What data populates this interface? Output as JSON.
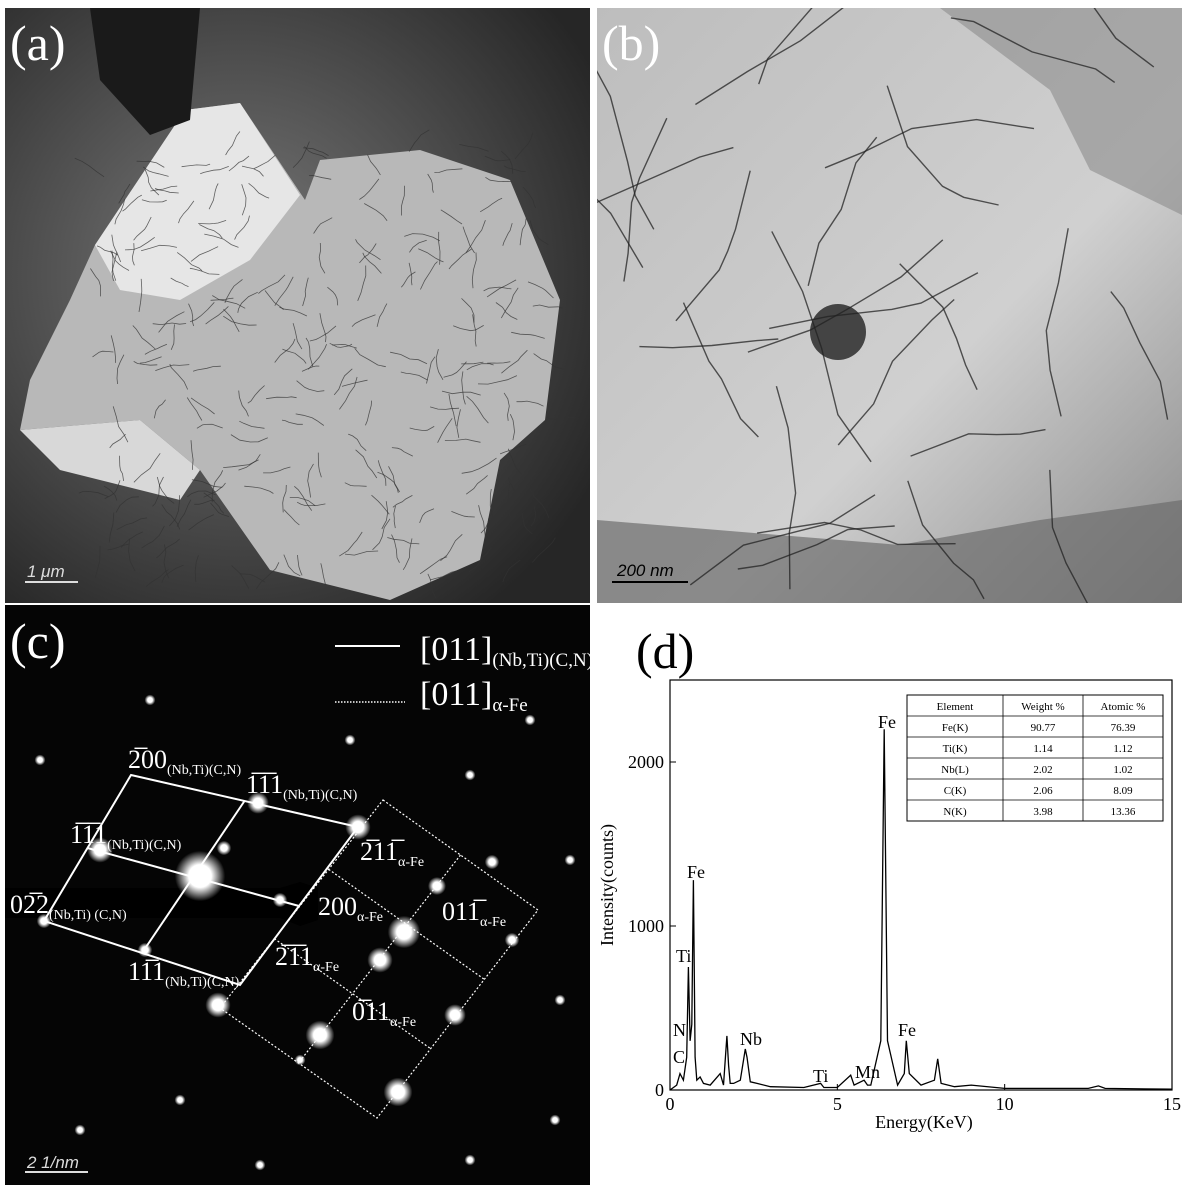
{
  "panels": {
    "a": {
      "label": "(a)",
      "scale_bar": "1 μm"
    },
    "b": {
      "label": "(b)",
      "scale_bar": "200 nm"
    },
    "c": {
      "label": "(c)",
      "scale_bar": "2 1/nm",
      "legend": [
        {
          "text": "[011]",
          "sub": "(Nb,Ti)(C,N)"
        },
        {
          "text": "[011]",
          "sub": "α-Fe"
        }
      ],
      "spot_labels": [
        {
          "text": "2̅00",
          "sub": "(Nb,Ti)(C,N)"
        },
        {
          "text": "1̅1̅1",
          "sub": "(Nb,Ti)(C,N)"
        },
        {
          "text": "1̅1̅1",
          "sub": "(Nb,Ti)(C,N)"
        },
        {
          "text": "02̅2",
          "sub": "(Nb,Ti) (C,N)"
        },
        {
          "text": "11̅1",
          "sub": "(Nb,Ti)(C,N)"
        },
        {
          "text": "2̅11̅",
          "sub": "α-Fe"
        },
        {
          "text": "200",
          "sub": "α-Fe"
        },
        {
          "text": "011̅",
          "sub": "α-Fe"
        },
        {
          "text": "2̅1̅1",
          "sub": "α-Fe"
        },
        {
          "text": "0̅11",
          "sub": "α-Fe"
        }
      ]
    },
    "d": {
      "label": "(d)"
    }
  },
  "chart_data": {
    "type": "line",
    "color": "#000000",
    "x_label": "Energy(KeV)",
    "y_label": "Intensity(counts)",
    "x": [
      0,
      0.2,
      0.3,
      0.4,
      0.5,
      0.55,
      0.6,
      0.65,
      0.7,
      0.75,
      0.8,
      0.9,
      1.0,
      1.2,
      1.5,
      1.6,
      1.7,
      1.75,
      1.8,
      1.9,
      2.1,
      2.25,
      2.3,
      2.4,
      2.6,
      3.0,
      4.0,
      4.5,
      4.6,
      5.0,
      5.4,
      5.45,
      5.5,
      5.8,
      5.9,
      6.0,
      6.3,
      6.4,
      6.5,
      6.8,
      7.0,
      7.06,
      7.15,
      7.5,
      7.9,
      8.0,
      8.1,
      8.5,
      9.0,
      10.0,
      12.5,
      12.8,
      13.0,
      15.0
    ],
    "values": [
      0,
      30,
      100,
      60,
      200,
      750,
      300,
      400,
      1280,
      200,
      60,
      80,
      40,
      30,
      100,
      30,
      330,
      150,
      40,
      40,
      60,
      250,
      200,
      50,
      40,
      20,
      15,
      40,
      15,
      15,
      90,
      60,
      30,
      60,
      30,
      30,
      300,
      2200,
      300,
      30,
      100,
      300,
      100,
      30,
      60,
      190,
      40,
      20,
      30,
      10,
      10,
      25,
      10,
      5
    ],
    "xlim": [
      0,
      15
    ],
    "ylim": [
      0,
      2500
    ],
    "xticks": [
      0,
      5,
      10,
      15
    ],
    "yticks": [
      0,
      1000,
      2000
    ],
    "peak_labels": [
      "Fe",
      "Ti",
      "Fe",
      "N",
      "C",
      "Nb",
      "Ti",
      "Mn",
      "Fe"
    ],
    "table": {
      "header": [
        "Element",
        "Weight %",
        "Atomic %"
      ],
      "rows": [
        [
          "Fe(K)",
          "90.77",
          "76.39"
        ],
        [
          "Ti(K)",
          "1.14",
          "1.12"
        ],
        [
          "Nb(L)",
          "2.02",
          "1.02"
        ],
        [
          "C(K)",
          "2.06",
          "8.09"
        ],
        [
          "N(K)",
          "3.98",
          "13.36"
        ]
      ]
    }
  }
}
